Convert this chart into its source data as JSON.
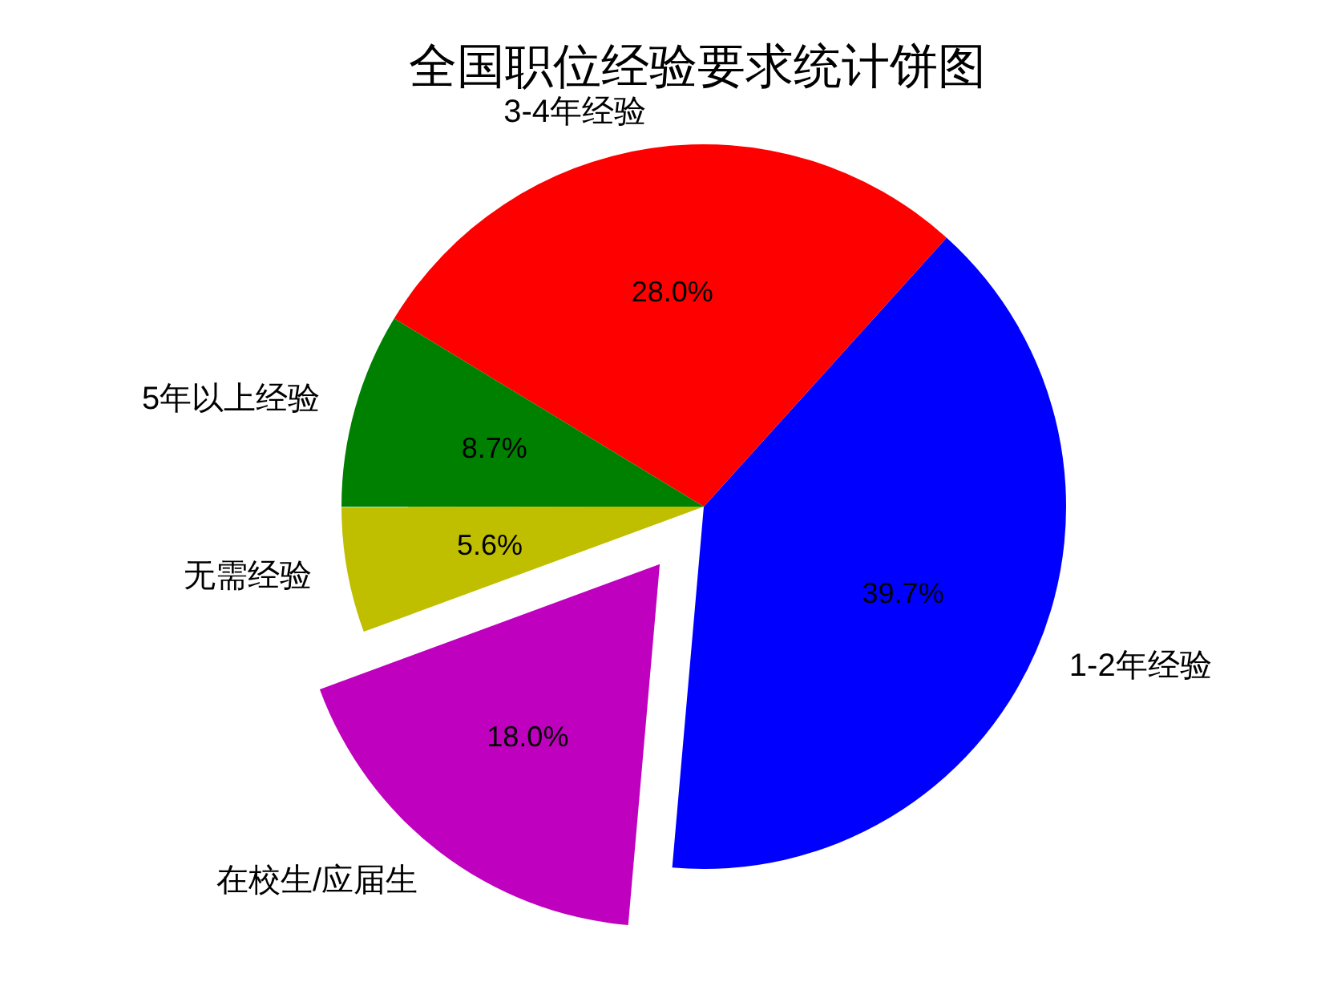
{
  "chart_data": {
    "type": "pie",
    "title": "全国职位经验要求统计饼图",
    "categories": [
      "1-2年经验",
      "3-4年经验",
      "5年以上经验",
      "无需经验",
      "在校生/应届生"
    ],
    "values": [
      39.7,
      28.0,
      8.7,
      5.6,
      18.0
    ],
    "colors": [
      "#0000ff",
      "#ff0000",
      "#008000",
      "#bfbf00",
      "#bf00bf"
    ],
    "value_labels": [
      "39.7%",
      "28.0%",
      "8.7%",
      "5.6%",
      "18.0%"
    ]
  }
}
